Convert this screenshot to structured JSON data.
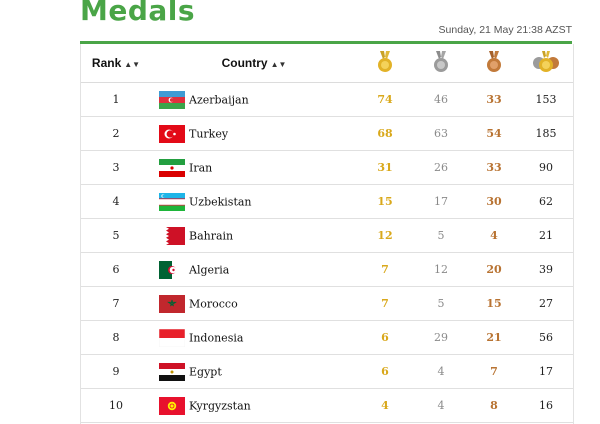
{
  "header": {
    "title": "Medals",
    "timestamp": "Sunday, 21 May 21:38 AZST"
  },
  "columns": {
    "rank": "Rank",
    "country": "Country",
    "sort_icon": "sort-arrows-icon",
    "gold_icon": "gold-medal-icon",
    "silver_icon": "silver-medal-icon",
    "bronze_icon": "bronze-medal-icon",
    "total_icon": "all-medals-icon"
  },
  "colors": {
    "accent": "#4aa547",
    "gold": "#d9a81b",
    "silver": "#8a8a8a",
    "bronze": "#b87332"
  },
  "rows": [
    {
      "rank": "1",
      "country": "Azerbaijan",
      "flag": "azerbaijan-flag",
      "gold": "74",
      "silver": "46",
      "bronze": "33",
      "total": "153"
    },
    {
      "rank": "2",
      "country": "Turkey",
      "flag": "turkey-flag",
      "gold": "68",
      "silver": "63",
      "bronze": "54",
      "total": "185"
    },
    {
      "rank": "3",
      "country": "Iran",
      "flag": "iran-flag",
      "gold": "31",
      "silver": "26",
      "bronze": "33",
      "total": "90"
    },
    {
      "rank": "4",
      "country": "Uzbekistan",
      "flag": "uzbekistan-flag",
      "gold": "15",
      "silver": "17",
      "bronze": "30",
      "total": "62"
    },
    {
      "rank": "5",
      "country": "Bahrain",
      "flag": "bahrain-flag",
      "gold": "12",
      "silver": "5",
      "bronze": "4",
      "total": "21"
    },
    {
      "rank": "6",
      "country": "Algeria",
      "flag": "algeria-flag",
      "gold": "7",
      "silver": "12",
      "bronze": "20",
      "total": "39"
    },
    {
      "rank": "7",
      "country": "Morocco",
      "flag": "morocco-flag",
      "gold": "7",
      "silver": "5",
      "bronze": "15",
      "total": "27"
    },
    {
      "rank": "8",
      "country": "Indonesia",
      "flag": "indonesia-flag",
      "gold": "6",
      "silver": "29",
      "bronze": "21",
      "total": "56"
    },
    {
      "rank": "9",
      "country": "Egypt",
      "flag": "egypt-flag",
      "gold": "6",
      "silver": "4",
      "bronze": "7",
      "total": "17"
    },
    {
      "rank": "10",
      "country": "Kyrgyzstan",
      "flag": "kyrgyzstan-flag",
      "gold": "4",
      "silver": "4",
      "bronze": "8",
      "total": "16"
    }
  ]
}
